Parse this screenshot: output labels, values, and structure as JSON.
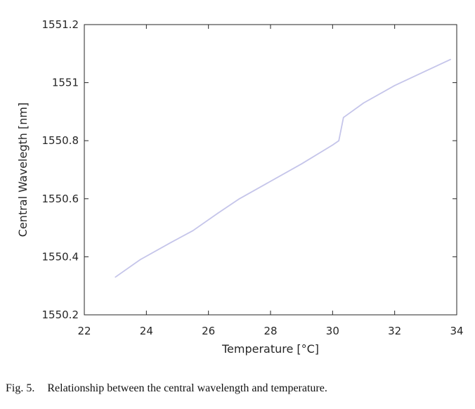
{
  "chart_data": {
    "type": "line",
    "title": "",
    "xlabel": "Temperature [°C]",
    "ylabel": "Central Wavelegth [nm]",
    "xlim": [
      22,
      34
    ],
    "ylim": [
      1550.2,
      1551.2
    ],
    "xticks": [
      22,
      24,
      26,
      28,
      30,
      32,
      34
    ],
    "xtick_labels": [
      "22",
      "24",
      "26",
      "28",
      "30",
      "32",
      "34"
    ],
    "yticks": [
      1550.2,
      1550.4,
      1550.6,
      1550.8,
      1551,
      1551.2
    ],
    "ytick_labels": [
      "1550.2",
      "1550.4",
      "1550.6",
      "1550.8",
      "1551",
      "1551.2"
    ],
    "grid": false,
    "line_color": "#c5c5ea",
    "series": [
      {
        "x": [
          23.0,
          23.8,
          24.8,
          25.5,
          26.3,
          27.0,
          28.0,
          29.0,
          30.0,
          30.2,
          30.35,
          31.0,
          32.0,
          33.0,
          33.8
        ],
        "y": [
          1550.33,
          1550.39,
          1550.45,
          1550.49,
          1550.55,
          1550.6,
          1550.66,
          1550.72,
          1550.785,
          1550.8,
          1550.88,
          1550.93,
          1550.99,
          1551.04,
          1551.08
        ]
      }
    ]
  },
  "caption": {
    "number": "Fig. 5.",
    "text": "Relationship between the central wavelength and temperature."
  }
}
